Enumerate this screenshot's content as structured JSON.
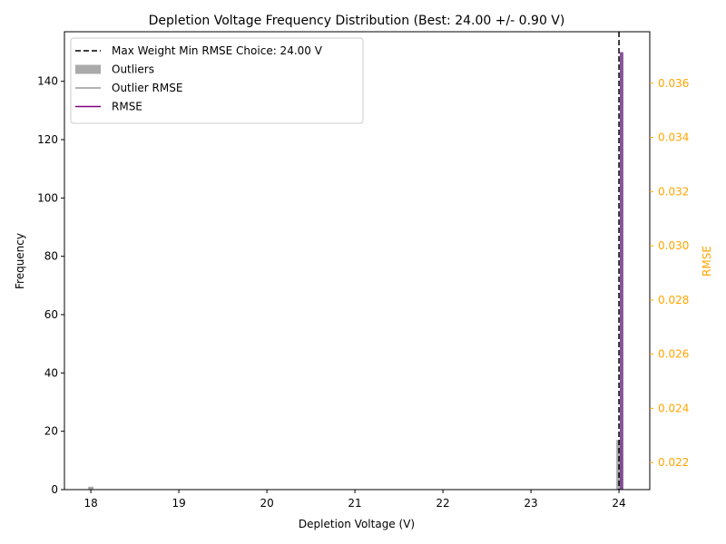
{
  "chart_data": {
    "type": "bar",
    "title": "Depletion Voltage Frequency Distribution (Best: 24.00 +/- 0.90 V)",
    "xlabel": "Depletion Voltage (V)",
    "ylabel": "Frequency",
    "y2label": "RMSE",
    "xlim": [
      17.7,
      24.35
    ],
    "ylim": [
      0,
      157
    ],
    "y2lim": [
      0.021,
      0.0379
    ],
    "xticks": [
      18,
      19,
      20,
      21,
      22,
      23,
      24
    ],
    "yticks": [
      0,
      20,
      40,
      60,
      80,
      100,
      120,
      140
    ],
    "y2ticks": [
      0.022,
      0.024,
      0.026,
      0.028,
      0.03,
      0.032,
      0.034,
      0.036
    ],
    "grid": false,
    "legend_position": "top-left",
    "right_axis_color": "#ffa500",
    "best_choice": {
      "x": 24.0,
      "label": "Max Weight Min RMSE Choice: 24.00 V",
      "color": "#000000"
    },
    "series": [
      {
        "name": "Outliers",
        "kind": "bar",
        "color": "#aaaaaa",
        "x": [
          18.0,
          24.0
        ],
        "values": [
          1,
          17
        ],
        "width": 0.06
      },
      {
        "name": "RMSE",
        "kind": "bar",
        "color": "#7b3f8e",
        "x": [
          24.03
        ],
        "values": [
          150
        ],
        "width": 0.04
      },
      {
        "name": "Outlier RMSE",
        "kind": "line",
        "color": "#999999",
        "x": [],
        "values": []
      },
      {
        "name": "RMSE",
        "kind": "line",
        "color": "#800080",
        "x": [],
        "values": []
      }
    ],
    "legend": [
      {
        "label": "Max Weight Min RMSE Choice: 24.00 V",
        "style": "dashed",
        "color": "#000000"
      },
      {
        "label": "Outliers",
        "style": "patch",
        "color": "#aaaaaa"
      },
      {
        "label": "Outlier RMSE",
        "style": "line",
        "color": "#999999"
      },
      {
        "label": "RMSE",
        "style": "line",
        "color": "#800080"
      }
    ]
  }
}
